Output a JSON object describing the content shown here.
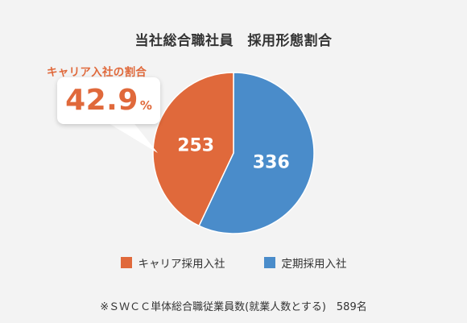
{
  "title": "当社総合職社員　採用形態割合",
  "callout": {
    "caption": "キャリア入社の割合",
    "value": "42.9",
    "unit": "%"
  },
  "chart_data": {
    "type": "pie",
    "title": "当社総合職社員　採用形態割合",
    "slices": [
      {
        "name": "キャリア採用入社",
        "value": 253,
        "label": "253",
        "color": "#e0693b"
      },
      {
        "name": "定期採用入社",
        "value": 336,
        "label": "336",
        "color": "#4a8cca"
      }
    ],
    "legend_position": "bottom"
  },
  "legend": [
    {
      "label": "キャリア採用入社",
      "color": "#e0693b"
    },
    {
      "label": "定期採用入社",
      "color": "#4a8cca"
    }
  ],
  "footnote": "※ＳＷＣＣ単体総合職従業員数(就業人数とする)　589名",
  "colors": {
    "career": "#e0693b",
    "regular": "#4a8cca",
    "background": "#f3f3f3"
  }
}
